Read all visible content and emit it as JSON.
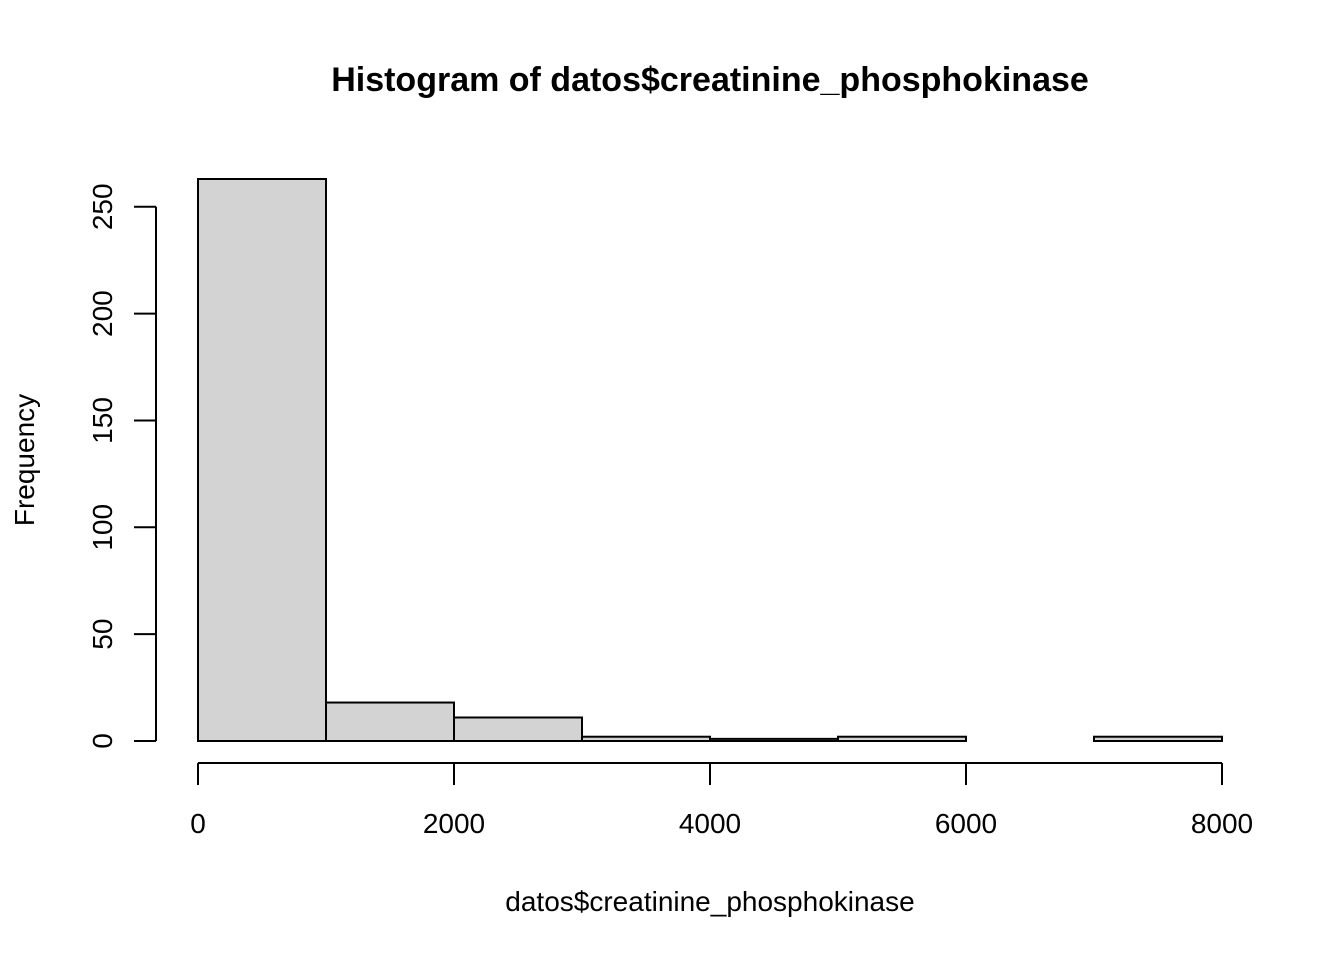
{
  "chart_data": {
    "type": "bar",
    "title": "Histogram of datos$creatinine_phosphokinase",
    "xlabel": "datos$creatinine_phosphokinase",
    "ylabel": "Frequency",
    "bins": [
      {
        "start": 0,
        "end": 1000,
        "count": 263
      },
      {
        "start": 1000,
        "end": 2000,
        "count": 18
      },
      {
        "start": 2000,
        "end": 3000,
        "count": 11
      },
      {
        "start": 3000,
        "end": 4000,
        "count": 2
      },
      {
        "start": 4000,
        "end": 5000,
        "count": 1
      },
      {
        "start": 5000,
        "end": 6000,
        "count": 2
      },
      {
        "start": 6000,
        "end": 7000,
        "count": 0
      },
      {
        "start": 7000,
        "end": 8000,
        "count": 2
      }
    ],
    "x_ticks": [
      0,
      2000,
      4000,
      6000,
      8000
    ],
    "y_ticks": [
      0,
      50,
      100,
      150,
      200,
      250
    ],
    "xlim": [
      0,
      8000
    ],
    "ylim": [
      0,
      263
    ],
    "grid": false,
    "bar_color": "#d3d3d3",
    "edge_color": "#000000"
  }
}
